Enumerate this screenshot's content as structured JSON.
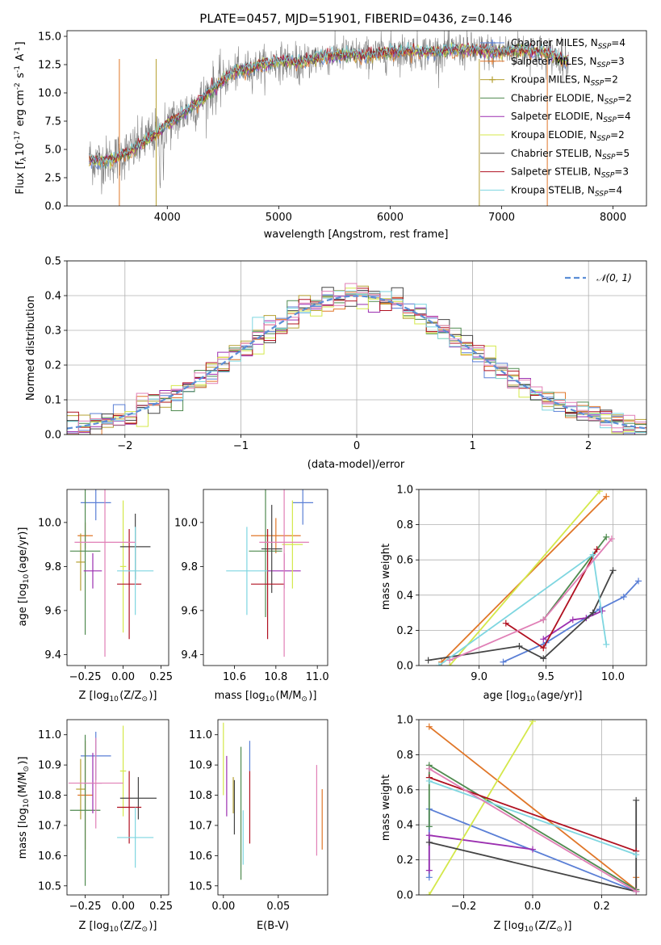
{
  "chart_data": [
    {
      "type": "line",
      "panel": "spectrum",
      "title": "PLATE=0457, MJD=51901, FIBERID=0436, z=0.146",
      "xlabel": "wavelength [Angstrom, rest frame]",
      "ylabel": "Flux [f$_\\lambda$10$^{-17}$ erg cm$^{-2}$ s$^{-1}$ A$^{-1}$]",
      "xlim": [
        3100,
        8300
      ],
      "ylim": [
        0,
        15.5
      ],
      "xticks": [
        4000,
        5000,
        6000,
        7000,
        8000
      ],
      "yticks": [
        0.0,
        2.5,
        5.0,
        7.5,
        10.0,
        12.5,
        15.0
      ],
      "xtick_labels": [
        "4000",
        "5000",
        "6000",
        "7000",
        "8000"
      ],
      "ytick_labels": [
        "0.0",
        "2.5",
        "5.0",
        "7.5",
        "10.0",
        "12.5",
        "15.0"
      ],
      "legend_position": "top-right",
      "series": [
        {
          "name": "Chabrier MILES, N_SSP=4",
          "color": "#5a7fd6"
        },
        {
          "name": "Salpeter MILES, N_SSP=3",
          "color": "#e07628"
        },
        {
          "name": "Kroupa MILES, N_SSP=2",
          "color": "#b5a032"
        },
        {
          "name": "Chabrier ELODIE, N_SSP=2",
          "color": "#4f8a4f"
        },
        {
          "name": "Salpeter ELODIE, N_SSP=4",
          "color": "#9b2fb0"
        },
        {
          "name": "Kroupa ELODIE, N_SSP=2",
          "color": "#d4e84a"
        },
        {
          "name": "Chabrier STELIB, N_SSP=5",
          "color": "#444444"
        },
        {
          "name": "Salpeter STELIB, N_SSP=3",
          "color": "#b01020"
        },
        {
          "name": "Kroupa STELIB, N_SSP=4",
          "color": "#7ed6e0"
        }
      ],
      "observed_color": "#808080",
      "continuum_shape": {
        "x": [
          3300,
          3400,
          3500,
          3600,
          3700,
          3800,
          3900,
          4000,
          4100,
          4200,
          4300,
          4400,
          4500,
          4600,
          4800,
          5000,
          5200,
          5400,
          5600,
          5800,
          6000,
          6200,
          6400,
          6600,
          6800,
          7000,
          7200,
          7400,
          7600
        ],
        "y": [
          4.2,
          3.9,
          4.1,
          4.5,
          5.0,
          5.8,
          6.3,
          7.3,
          7.8,
          8.6,
          9.3,
          10.3,
          11.1,
          11.8,
          12.3,
          12.8,
          12.7,
          13.2,
          13.4,
          13.3,
          13.6,
          13.7,
          13.6,
          13.8,
          13.7,
          13.6,
          13.8,
          13.5,
          12.8
        ]
      }
    },
    {
      "type": "step",
      "panel": "residual-histogram",
      "xlabel": "(data-model)/error",
      "ylabel": "Normed distribution",
      "xlim": [
        -2.5,
        2.5
      ],
      "ylim": [
        0,
        0.5
      ],
      "xticks": [
        -2,
        -1,
        0,
        1,
        2
      ],
      "yticks": [
        0.0,
        0.1,
        0.2,
        0.3,
        0.4,
        0.5
      ],
      "xtick_labels": [
        "−2",
        "−1",
        "0",
        "1",
        "2"
      ],
      "ytick_labels": [
        "0.0",
        "0.1",
        "0.2",
        "0.3",
        "0.4",
        "0.5"
      ],
      "grid": true,
      "legend_position": "top-right",
      "reference_curve": {
        "label": "N(0,1)",
        "color": "#5b8ed6"
      },
      "bins": {
        "start": -2.5,
        "width": 0.1,
        "count": 50
      },
      "series_colors": [
        "#5a7fd6",
        "#e07628",
        "#b5a032",
        "#4f8a4f",
        "#9b2fb0",
        "#d4e84a",
        "#444444",
        "#b01020",
        "#7ed6e0",
        "#e07fb6"
      ]
    },
    {
      "type": "errorbar",
      "panel": "age-vs-Z",
      "xlabel": "Z [log$_{10}$(Z/Z$_\\odot$)]",
      "ylabel": "age  [log$_{10}$(age/yr)]",
      "xlim": [
        -0.37,
        0.3
      ],
      "ylim": [
        9.35,
        10.15
      ],
      "xticks": [
        -0.25,
        0.0,
        0.25
      ],
      "yticks": [
        9.4,
        9.6,
        9.8,
        10.0
      ],
      "xtick_labels": [
        "−0.25",
        "0.00",
        "0.25"
      ],
      "ytick_labels": [
        "9.4",
        "9.6",
        "9.8",
        "10.0"
      ],
      "points": [
        {
          "x": -0.18,
          "xerr": 0.1,
          "y": 10.09,
          "yerr": 0.08,
          "color": "#5a7fd6"
        },
        {
          "x": -0.25,
          "xerr": 0.05,
          "y": 9.94,
          "yerr": 0.06,
          "color": "#e07628"
        },
        {
          "x": -0.28,
          "xerr": 0.03,
          "y": 9.82,
          "yerr": 0.13,
          "color": "#b5a032"
        },
        {
          "x": -0.25,
          "xerr": 0.1,
          "y": 9.87,
          "yerr": 0.38,
          "color": "#4f8a4f"
        },
        {
          "x": -0.2,
          "xerr": 0.06,
          "y": 9.78,
          "yerr": 0.08,
          "color": "#9b2fb0"
        },
        {
          "x": 0.0,
          "xerr": 0.02,
          "y": 9.8,
          "yerr": 0.3,
          "color": "#d4e84a"
        },
        {
          "x": 0.08,
          "xerr": 0.1,
          "y": 9.89,
          "yerr": 0.15,
          "color": "#444444"
        },
        {
          "x": 0.04,
          "xerr": 0.08,
          "y": 9.72,
          "yerr": 0.25,
          "color": "#b01020"
        },
        {
          "x": 0.08,
          "xerr": 0.12,
          "y": 9.78,
          "yerr": 0.2,
          "color": "#7ed6e0"
        },
        {
          "x": -0.12,
          "xerr": 0.2,
          "y": 9.91,
          "yerr": 0.52,
          "color": "#e07fb6"
        }
      ]
    },
    {
      "type": "errorbar",
      "panel": "age-vs-mass",
      "xlabel": "mass [log$_{10}$(M/M$_\\odot$)]",
      "xlim": [
        10.45,
        11.05
      ],
      "ylim": [
        9.35,
        10.15
      ],
      "xticks": [
        10.6,
        10.8,
        11.0
      ],
      "yticks": [
        9.4,
        9.6,
        9.8,
        10.0
      ],
      "xtick_labels": [
        "10.6",
        "10.8",
        "11.0"
      ],
      "ytick_labels": [
        "9.4",
        "9.6",
        "9.8",
        "10.0"
      ],
      "points": [
        {
          "x": 10.93,
          "xerr": 0.05,
          "y": 10.09,
          "yerr": 0.1,
          "color": "#5a7fd6"
        },
        {
          "x": 10.8,
          "xerr": 0.12,
          "y": 9.94,
          "yerr": 0.08,
          "color": "#e07628"
        },
        {
          "x": 10.75,
          "xerr": 0.08,
          "y": 9.87,
          "yerr": 0.3,
          "color": "#4f8a4f"
        },
        {
          "x": 10.84,
          "xerr": 0.08,
          "y": 9.78,
          "yerr": 0.08,
          "color": "#9b2fb0"
        },
        {
          "x": 10.88,
          "xerr": 0.05,
          "y": 9.9,
          "yerr": 0.2,
          "color": "#d4e84a"
        },
        {
          "x": 10.78,
          "xerr": 0.05,
          "y": 9.88,
          "yerr": 0.2,
          "color": "#444444"
        },
        {
          "x": 10.76,
          "xerr": 0.08,
          "y": 9.72,
          "yerr": 0.25,
          "color": "#b01020"
        },
        {
          "x": 10.66,
          "xerr": 0.1,
          "y": 9.78,
          "yerr": 0.2,
          "color": "#7ed6e0"
        },
        {
          "x": 10.84,
          "xerr": 0.12,
          "y": 9.91,
          "yerr": 0.52,
          "color": "#e07fb6"
        }
      ]
    },
    {
      "type": "line",
      "panel": "mass-weight-vs-age",
      "xlabel": "age  [log$_{10}$(age/yr)]",
      "ylabel": "mass weight",
      "xlim": [
        8.55,
        10.25
      ],
      "ylim": [
        0,
        1
      ],
      "xticks": [
        9.0,
        9.5,
        10.0
      ],
      "yticks": [
        0.0,
        0.2,
        0.4,
        0.6,
        0.8,
        1.0
      ],
      "xtick_labels": [
        "9.0",
        "9.5",
        "10.0"
      ],
      "ytick_labels": [
        "0.0",
        "0.2",
        "0.4",
        "0.6",
        "0.8",
        "1.0"
      ],
      "grid": true,
      "series": [
        {
          "color": "#5a7fd6",
          "x": [
            9.18,
            9.5,
            9.9,
            10.08,
            10.19
          ],
          "y": [
            0.02,
            0.13,
            0.32,
            0.39,
            0.48
          ]
        },
        {
          "color": "#e07628",
          "x": [
            8.72,
            9.95
          ],
          "y": [
            0.02,
            0.96
          ]
        },
        {
          "color": "#4f8a4f",
          "x": [
            9.48,
            9.95
          ],
          "y": [
            0.26,
            0.73
          ]
        },
        {
          "color": "#9b2fb0",
          "x": [
            9.48,
            9.7,
            9.8,
            9.92
          ],
          "y": [
            0.15,
            0.26,
            0.27,
            0.31
          ]
        },
        {
          "color": "#d4e84a",
          "x": [
            8.78,
            9.9
          ],
          "y": [
            0.0,
            0.99
          ]
        },
        {
          "color": "#444444",
          "x": [
            8.62,
            9.3,
            9.48,
            9.85,
            10.0
          ],
          "y": [
            0.03,
            0.11,
            0.04,
            0.3,
            0.54
          ]
        },
        {
          "color": "#b01020",
          "x": [
            9.2,
            9.48,
            9.88
          ],
          "y": [
            0.24,
            0.1,
            0.66
          ]
        },
        {
          "color": "#7ed6e0",
          "x": [
            8.7,
            9.85,
            9.95
          ],
          "y": [
            0.0,
            0.63,
            0.12
          ]
        },
        {
          "color": "#e07fb6",
          "x": [
            8.78,
            9.48,
            9.99
          ],
          "y": [
            0.03,
            0.26,
            0.72
          ]
        }
      ]
    },
    {
      "type": "errorbar",
      "panel": "mass-vs-Z",
      "xlabel": "Z [log$_{10}$(Z/Z$_\\odot$)]",
      "ylabel": "mass [log$_{10}$(M/M$_\\odot$)]",
      "xlim": [
        -0.37,
        0.3
      ],
      "ylim": [
        10.47,
        11.05
      ],
      "xticks": [
        -0.25,
        0.0,
        0.25
      ],
      "yticks": [
        10.5,
        10.6,
        10.7,
        10.8,
        10.9,
        11.0
      ],
      "xtick_labels": [
        "−0.25",
        "0.00",
        "0.25"
      ],
      "ytick_labels": [
        "10.5",
        "10.6",
        "10.7",
        "10.8",
        "10.9",
        "11.0"
      ],
      "points": [
        {
          "x": -0.18,
          "xerr": 0.1,
          "y": 10.93,
          "yerr": 0.08,
          "color": "#5a7fd6"
        },
        {
          "x": -0.25,
          "xerr": 0.05,
          "y": 10.8,
          "yerr": 0.18,
          "color": "#e07628"
        },
        {
          "x": -0.28,
          "xerr": 0.03,
          "y": 10.82,
          "yerr": 0.1,
          "color": "#b5a032"
        },
        {
          "x": -0.25,
          "xerr": 0.1,
          "y": 10.75,
          "yerr": 0.25,
          "color": "#4f8a4f"
        },
        {
          "x": -0.2,
          "xerr": 0.06,
          "y": 10.84,
          "yerr": 0.1,
          "color": "#9b2fb0"
        },
        {
          "x": 0.0,
          "xerr": 0.02,
          "y": 10.88,
          "yerr": 0.15,
          "color": "#d4e84a"
        },
        {
          "x": 0.1,
          "xerr": 0.12,
          "y": 10.79,
          "yerr": 0.07,
          "color": "#444444"
        },
        {
          "x": 0.04,
          "xerr": 0.08,
          "y": 10.76,
          "yerr": 0.12,
          "color": "#b01020"
        },
        {
          "x": 0.08,
          "xerr": 0.12,
          "y": 10.66,
          "yerr": 0.1,
          "color": "#7ed6e0"
        },
        {
          "x": -0.18,
          "xerr": 0.18,
          "y": 10.84,
          "yerr": 0.15,
          "color": "#e07fb6"
        }
      ]
    },
    {
      "type": "errorbar",
      "panel": "mass-vs-EBV",
      "xlabel": "E(B-V)",
      "xlim": [
        -0.005,
        0.095
      ],
      "ylim": [
        10.47,
        11.05
      ],
      "xticks": [
        0.0,
        0.05
      ],
      "yticks": [
        10.5,
        10.6,
        10.7,
        10.8,
        10.9,
        11.0
      ],
      "xtick_labels": [
        "0.00",
        "0.05"
      ],
      "ytick_labels": [
        "10.5",
        "10.6",
        "10.7",
        "10.8",
        "10.9",
        "11.0"
      ],
      "points": [
        {
          "x": 0.024,
          "y": 10.93,
          "yerr": 0.05,
          "color": "#5a7fd6"
        },
        {
          "x": 0.09,
          "y": 10.72,
          "yerr": 0.1,
          "color": "#e07628"
        },
        {
          "x": 0.009,
          "y": 10.8,
          "yerr": 0.06,
          "color": "#b5a032"
        },
        {
          "x": 0.016,
          "y": 10.74,
          "yerr": 0.22,
          "color": "#4f8a4f"
        },
        {
          "x": 0.003,
          "y": 10.83,
          "yerr": 0.1,
          "color": "#9b2fb0"
        },
        {
          "x": 0.0,
          "y": 10.92,
          "yerr": 0.12,
          "color": "#d4e84a"
        },
        {
          "x": 0.01,
          "y": 10.76,
          "yerr": 0.09,
          "color": "#444444"
        },
        {
          "x": 0.024,
          "y": 10.76,
          "yerr": 0.12,
          "color": "#b01020"
        },
        {
          "x": 0.018,
          "y": 10.66,
          "yerr": 0.09,
          "color": "#7ed6e0"
        },
        {
          "x": 0.085,
          "y": 10.75,
          "yerr": 0.15,
          "color": "#e07fb6"
        }
      ]
    },
    {
      "type": "line",
      "panel": "mass-weight-vs-Z",
      "xlabel": "Z [log$_{10}$(Z/Z$_\\odot$)]",
      "ylabel": "mass weight",
      "xlim": [
        -0.33,
        0.33
      ],
      "ylim": [
        0,
        1
      ],
      "xticks": [
        -0.2,
        0.0,
        0.2
      ],
      "yticks": [
        0.0,
        0.2,
        0.4,
        0.6,
        0.8,
        1.0
      ],
      "xtick_labels": [
        "−0.2",
        "0.0",
        "0.2"
      ],
      "ytick_labels": [
        "0.0",
        "0.2",
        "0.4",
        "0.6",
        "0.8",
        "1.0"
      ],
      "grid": true,
      "series": [
        {
          "color": "#5a7fd6",
          "x": [
            -0.3,
            -0.3,
            0.3,
            0.3
          ],
          "y": [
            0.1,
            0.49,
            0.02,
            0.02
          ]
        },
        {
          "color": "#e07628",
          "x": [
            -0.3,
            0.3,
            0.3
          ],
          "y": [
            0.96,
            0.03,
            0.1
          ]
        },
        {
          "color": "#4f8a4f",
          "x": [
            -0.3,
            -0.3,
            0.3,
            0.3
          ],
          "y": [
            0.39,
            0.74,
            0.03,
            0.03
          ]
        },
        {
          "color": "#9b2fb0",
          "x": [
            -0.3,
            -0.3,
            0.0
          ],
          "y": [
            0.14,
            0.34,
            0.26
          ]
        },
        {
          "color": "#d4e84a",
          "x": [
            -0.3,
            0.0
          ],
          "y": [
            0.0,
            0.99
          ]
        },
        {
          "color": "#444444",
          "x": [
            -0.3,
            0.3,
            0.3
          ],
          "y": [
            0.3,
            0.02,
            0.54
          ]
        },
        {
          "color": "#b01020",
          "x": [
            -0.3,
            0.3
          ],
          "y": [
            0.67,
            0.25
          ]
        },
        {
          "color": "#7ed6e0",
          "x": [
            -0.3,
            0.3
          ],
          "y": [
            0.65,
            0.23
          ]
        },
        {
          "color": "#e07fb6",
          "x": [
            -0.3,
            0.3
          ],
          "y": [
            0.72,
            0.02
          ]
        }
      ]
    }
  ]
}
